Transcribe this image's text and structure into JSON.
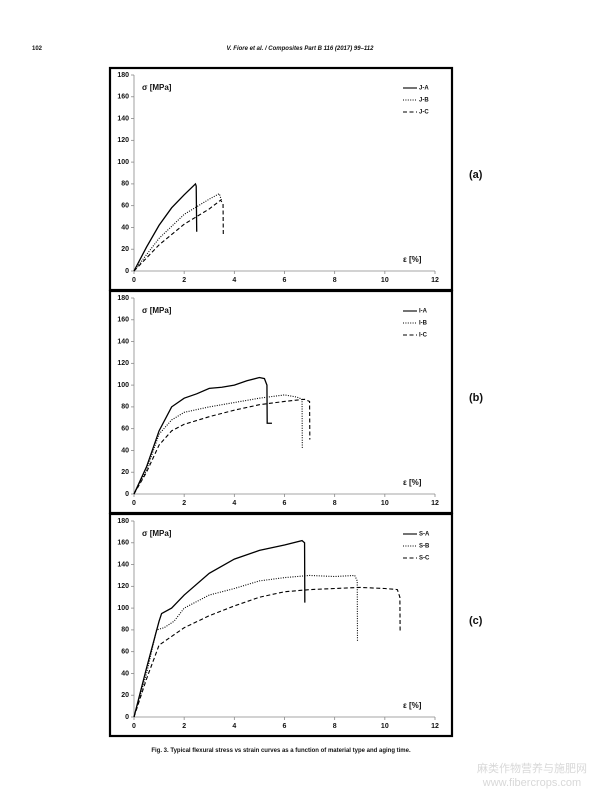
{
  "header": {
    "page_number": "102",
    "running_title": "V. Fiore et al. / Composites Part B 116 (2017) 99–112"
  },
  "caption": "Fig. 3. Typical flexural stress vs strain curves as a function of material type and aging time.",
  "watermark": {
    "line1": "麻类作物营养与施肥网",
    "line2": "www.fibercrops.com"
  },
  "chart_data": [
    {
      "type": "line",
      "label": "(a)",
      "ylabel": "σ [MPa]",
      "xlabel": "ε [%]",
      "xlim": [
        0,
        12
      ],
      "ylim": [
        0,
        180
      ],
      "xticks": [
        0,
        2,
        4,
        6,
        8,
        10,
        12
      ],
      "yticks": [
        0,
        20,
        40,
        60,
        80,
        100,
        120,
        140,
        160,
        180
      ],
      "legend": "upper right",
      "series": [
        {
          "name": "J-A",
          "color": "#000000",
          "dash": "solid",
          "x": [
            0,
            0.5,
            1,
            1.5,
            2,
            2.45,
            2.48,
            2.5
          ],
          "values": [
            0,
            22,
            42,
            58,
            70,
            80,
            78,
            36
          ]
        },
        {
          "name": "J-B",
          "color": "#000000",
          "dash": "dotted",
          "x": [
            0,
            1,
            2,
            3,
            3.4,
            3.5
          ],
          "values": [
            0,
            30,
            52,
            66,
            71,
            64
          ]
        },
        {
          "name": "J-C",
          "color": "#000000",
          "dash": "dashed",
          "x": [
            0,
            1,
            2,
            3,
            3.45,
            3.55,
            3.56
          ],
          "values": [
            0,
            24,
            43,
            57,
            65,
            62,
            32
          ]
        }
      ]
    },
    {
      "type": "line",
      "label": "(b)",
      "ylabel": "σ [MPa]",
      "xlabel": "ε [%]",
      "xlim": [
        0,
        12
      ],
      "ylim": [
        0,
        180
      ],
      "xticks": [
        0,
        2,
        4,
        6,
        8,
        10,
        12
      ],
      "yticks": [
        0,
        20,
        40,
        60,
        80,
        100,
        120,
        140,
        160,
        180
      ],
      "legend": "upper right",
      "series": [
        {
          "name": "I-A",
          "color": "#000000",
          "dash": "solid",
          "x": [
            0,
            0.5,
            1,
            1.5,
            2,
            2.5,
            3,
            3.5,
            4,
            4.5,
            5,
            5.2,
            5.3,
            5.31,
            5.5
          ],
          "values": [
            0,
            25,
            58,
            80,
            88,
            92,
            97,
            98,
            100,
            104,
            107,
            106,
            100,
            65,
            65
          ]
        },
        {
          "name": "I-B",
          "color": "#000000",
          "dash": "dotted",
          "x": [
            0,
            0.5,
            1,
            1.5,
            2,
            3,
            4,
            5,
            6,
            6.5,
            6.7,
            6.71
          ],
          "values": [
            0,
            22,
            55,
            68,
            75,
            80,
            84,
            88,
            91,
            89,
            87,
            42
          ]
        },
        {
          "name": "I-C",
          "color": "#000000",
          "dash": "dashed",
          "x": [
            0,
            0.5,
            1,
            1.5,
            2,
            3,
            4,
            5,
            6,
            6.8,
            7,
            7.01
          ],
          "values": [
            0,
            20,
            45,
            58,
            64,
            71,
            77,
            82,
            85,
            87,
            85,
            50
          ]
        }
      ]
    },
    {
      "type": "line",
      "label": "(c)",
      "ylabel": "σ [MPa]",
      "xlabel": "ε [%]",
      "xlim": [
        0,
        12
      ],
      "ylim": [
        0,
        180
      ],
      "xticks": [
        0,
        2,
        4,
        6,
        8,
        10,
        12
      ],
      "yticks": [
        0,
        20,
        40,
        60,
        80,
        100,
        120,
        140,
        160,
        180
      ],
      "legend": "upper right",
      "series": [
        {
          "name": "S-A",
          "color": "#000000",
          "dash": "solid",
          "x": [
            0,
            0.5,
            1,
            1.1,
            1.5,
            2,
            3,
            4,
            5,
            6,
            6.7,
            6.8,
            6.81
          ],
          "values": [
            0,
            45,
            88,
            95,
            100,
            112,
            132,
            145,
            153,
            158,
            162,
            160,
            105
          ]
        },
        {
          "name": "S-B",
          "color": "#000000",
          "dash": "dotted",
          "x": [
            0,
            0.5,
            0.9,
            1.2,
            1.6,
            2,
            3,
            4,
            5,
            6,
            7,
            8,
            8.8,
            8.9,
            8.91
          ],
          "values": [
            0,
            40,
            80,
            82,
            88,
            100,
            112,
            118,
            125,
            128,
            130,
            129,
            130,
            125,
            70
          ]
        },
        {
          "name": "S-C",
          "color": "#000000",
          "dash": "dashed",
          "x": [
            0,
            0.5,
            1,
            1.5,
            2,
            3,
            4,
            5,
            6,
            7,
            8,
            9,
            10,
            10.5,
            10.6,
            10.61
          ],
          "values": [
            0,
            35,
            66,
            74,
            82,
            93,
            102,
            110,
            115,
            117,
            118,
            119,
            118,
            117,
            110,
            78
          ]
        }
      ]
    }
  ]
}
